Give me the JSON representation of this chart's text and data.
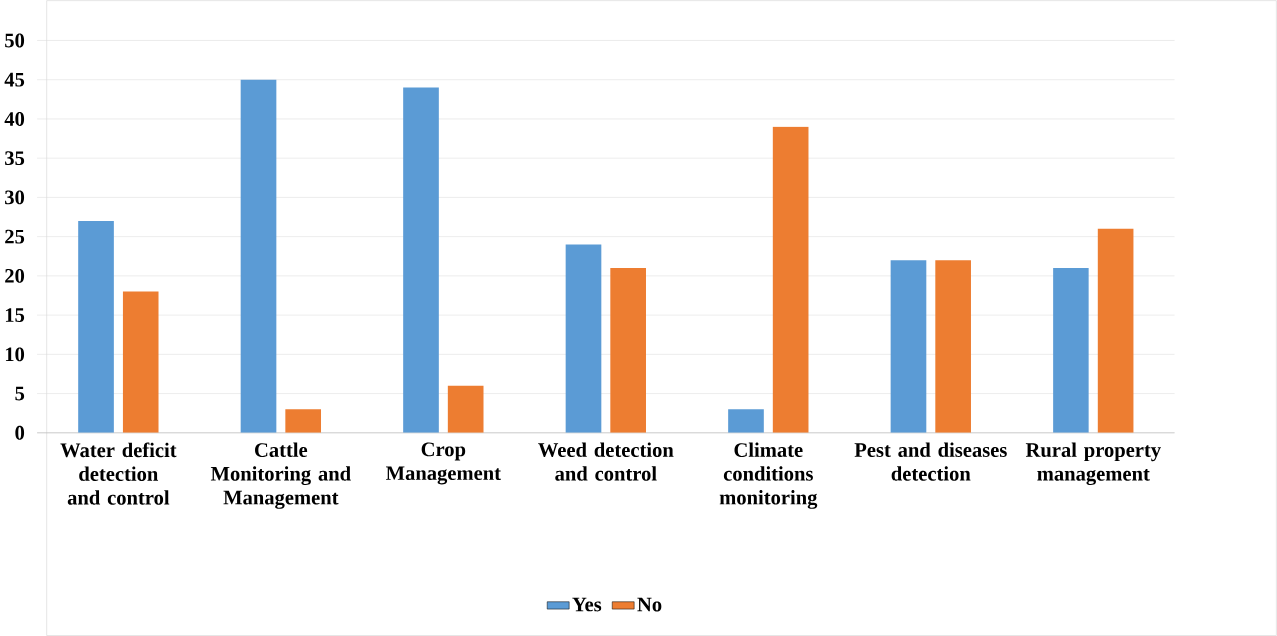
{
  "chart_data": {
    "type": "bar",
    "categories": [
      "Water deficit detection and control",
      "Cattle Monitoring and Management",
      "Crop Management",
      "Weed detection and control",
      "Climate conditions monitoring",
      "Pest and diseases detection",
      "Rural property management"
    ],
    "series": [
      {
        "name": "Yes",
        "color": "#5b9bd5",
        "values": [
          27,
          45,
          44,
          24,
          3,
          22,
          21
        ]
      },
      {
        "name": "No",
        "color": "#ed7d31",
        "values": [
          18,
          3,
          6,
          21,
          39,
          22,
          26
        ]
      }
    ],
    "ylim": [
      0,
      50
    ],
    "yticks": [
      0,
      5,
      10,
      15,
      20,
      25,
      30,
      35,
      40,
      45,
      50
    ],
    "grid": "y",
    "legend": "bottom"
  }
}
